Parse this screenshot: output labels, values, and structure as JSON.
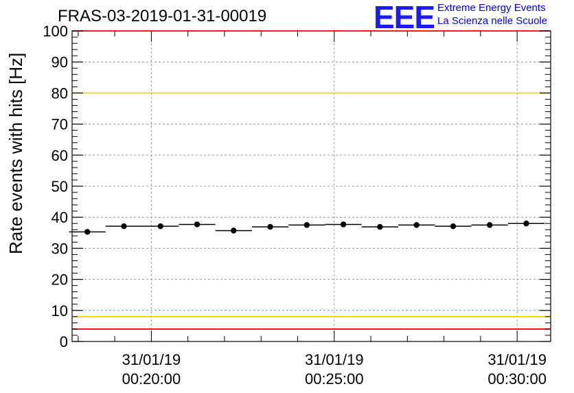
{
  "chart_data": {
    "type": "scatter",
    "title": "FRAS-03-2019-01-31-00019",
    "ylabel": "Rate events with hits [Hz]",
    "xlabel": "",
    "ylim": [
      0,
      100
    ],
    "yticks": [
      0,
      10,
      20,
      30,
      40,
      50,
      60,
      70,
      80,
      90,
      100
    ],
    "xticks": [
      {
        "time": "00:20:00",
        "label_date": "31/01/19",
        "label_time": "00:20:00"
      },
      {
        "time": "00:25:00",
        "label_date": "31/01/19",
        "label_time": "00:25:00"
      },
      {
        "time": "00:30:00",
        "label_date": "31/01/19",
        "label_time": "00:30:00"
      }
    ],
    "xlim": [
      "00:17:50",
      "00:30:55"
    ],
    "grid": true,
    "points": [
      {
        "x": "00:18:15",
        "y": 35.3
      },
      {
        "x": "00:19:15",
        "y": 37.1
      },
      {
        "x": "00:20:15",
        "y": 37.1
      },
      {
        "x": "00:21:15",
        "y": 37.7
      },
      {
        "x": "00:22:15",
        "y": 35.7
      },
      {
        "x": "00:23:15",
        "y": 36.9
      },
      {
        "x": "00:24:15",
        "y": 37.5
      },
      {
        "x": "00:25:15",
        "y": 37.7
      },
      {
        "x": "00:26:15",
        "y": 36.9
      },
      {
        "x": "00:27:15",
        "y": 37.5
      },
      {
        "x": "00:28:15",
        "y": 37.1
      },
      {
        "x": "00:29:15",
        "y": 37.5
      },
      {
        "x": "00:30:15",
        "y": 38.0
      }
    ],
    "bin_width_seconds": 60,
    "reference_lines": [
      {
        "y": 100,
        "color": "#ff0000"
      },
      {
        "y": 80,
        "color": "#ffcc00"
      },
      {
        "y": 8,
        "color": "#ffcc00"
      },
      {
        "y": 4,
        "color": "#ff0000"
      }
    ],
    "colors": {
      "points": "#000000",
      "grid": "#999999",
      "axes": "#000000"
    }
  },
  "logo": {
    "mark": "EEE",
    "line1": "Extreme Energy Events",
    "line2": "La Scienza nelle Scuole",
    "color": "#0000ee"
  }
}
